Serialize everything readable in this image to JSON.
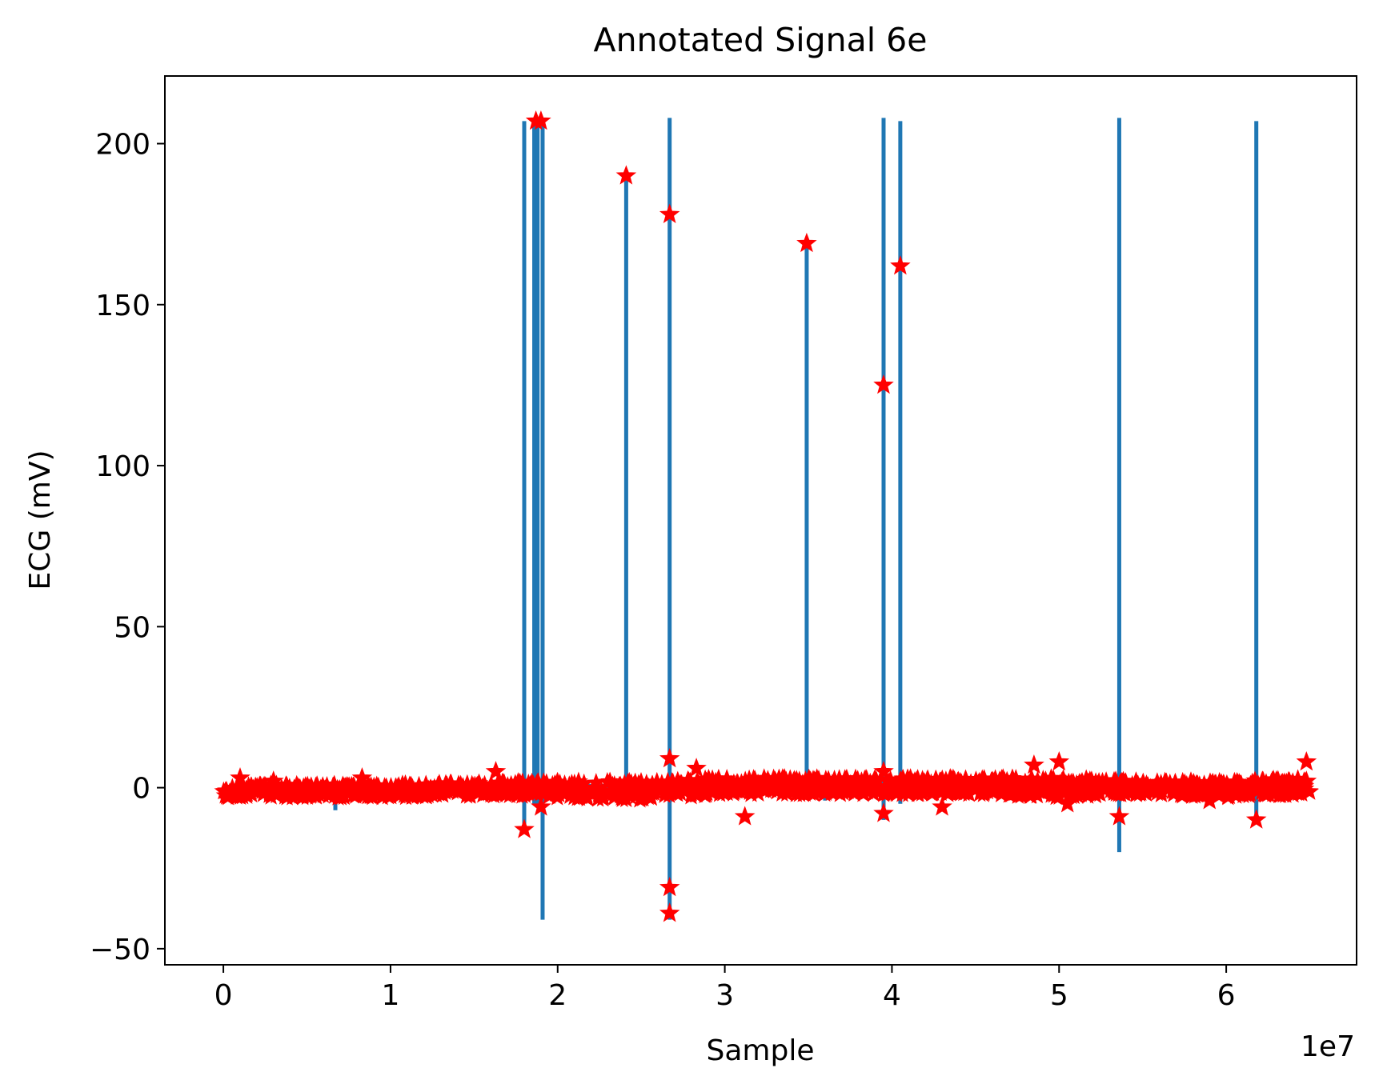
{
  "chart_data": {
    "type": "line",
    "title": "Annotated Signal 6e",
    "xlabel": "Sample",
    "ylabel": "ECG (mV)",
    "x_offset_label": "1e7",
    "xlim": [
      -0.35,
      6.78
    ],
    "ylim": [
      -55,
      221
    ],
    "x_ticks": [
      0,
      1,
      2,
      3,
      4,
      5,
      6
    ],
    "x_tick_labels": [
      "0",
      "1",
      "2",
      "3",
      "4",
      "5",
      "6"
    ],
    "y_ticks": [
      -50,
      0,
      50,
      100,
      150,
      200
    ],
    "y_tick_labels": [
      "−50",
      "0",
      "50",
      "100",
      "150",
      "200"
    ],
    "grid": false,
    "series": [
      {
        "role": "signal",
        "color": "#1f77b4",
        "marker": "line",
        "baseline": {
          "x": [
            0,
            0.5,
            1.0,
            1.5,
            2.0,
            2.5,
            3.0,
            3.5,
            4.0,
            4.5,
            5.0,
            5.5,
            6.0,
            6.5
          ],
          "low": [
            -3,
            -3,
            -3,
            -2.5,
            -3,
            -4,
            -2,
            -2,
            -2,
            -2,
            -3,
            -2,
            -3,
            -2
          ],
          "high": [
            1,
            1,
            1,
            1.5,
            2,
            2,
            3,
            3,
            3,
            3,
            3,
            2,
            2,
            3
          ]
        },
        "spikes": [
          {
            "x": 0.67,
            "min": -7,
            "max": 1
          },
          {
            "x": 1.8,
            "min": -12,
            "max": 207
          },
          {
            "x": 1.86,
            "min": -5,
            "max": 207
          },
          {
            "x": 1.88,
            "min": -5,
            "max": 207
          },
          {
            "x": 1.91,
            "min": -41,
            "max": 207
          },
          {
            "x": 2.41,
            "min": -3,
            "max": 190
          },
          {
            "x": 2.67,
            "min": -41,
            "max": 208
          },
          {
            "x": 3.49,
            "min": -3,
            "max": 169
          },
          {
            "x": 3.6,
            "min": -4,
            "max": 2
          },
          {
            "x": 3.95,
            "min": -10,
            "max": 208
          },
          {
            "x": 4.05,
            "min": -5,
            "max": 207
          },
          {
            "x": 5.36,
            "min": -20,
            "max": 208
          },
          {
            "x": 6.18,
            "min": -10,
            "max": 207
          }
        ]
      },
      {
        "role": "annotations",
        "color": "#ff0000",
        "marker": "star",
        "outliers": [
          {
            "x": 1.87,
            "y": 207
          },
          {
            "x": 1.9,
            "y": 207
          },
          {
            "x": 2.41,
            "y": 190
          },
          {
            "x": 2.67,
            "y": 178
          },
          {
            "x": 3.49,
            "y": 169
          },
          {
            "x": 3.95,
            "y": 125
          },
          {
            "x": 4.05,
            "y": 162
          },
          {
            "x": 1.8,
            "y": -13
          },
          {
            "x": 1.9,
            "y": -6
          },
          {
            "x": 2.67,
            "y": -31
          },
          {
            "x": 2.67,
            "y": -39
          },
          {
            "x": 2.67,
            "y": 9
          },
          {
            "x": 3.12,
            "y": -9
          },
          {
            "x": 3.95,
            "y": -8
          },
          {
            "x": 4.3,
            "y": -6
          },
          {
            "x": 5.36,
            "y": -9
          },
          {
            "x": 6.18,
            "y": -10
          },
          {
            "x": 5.0,
            "y": 8
          },
          {
            "x": 4.85,
            "y": 7
          },
          {
            "x": 6.48,
            "y": 8
          },
          {
            "x": 1.63,
            "y": 5
          },
          {
            "x": 2.83,
            "y": 6
          },
          {
            "x": 3.95,
            "y": 5
          },
          {
            "x": 0.1,
            "y": 3
          },
          {
            "x": 0.83,
            "y": 3
          },
          {
            "x": 5.05,
            "y": -5
          },
          {
            "x": 5.9,
            "y": -4
          },
          {
            "x": 0.05,
            "y": -2
          },
          {
            "x": 0.3,
            "y": 2
          },
          {
            "x": 6.48,
            "y": 2
          }
        ]
      }
    ]
  }
}
